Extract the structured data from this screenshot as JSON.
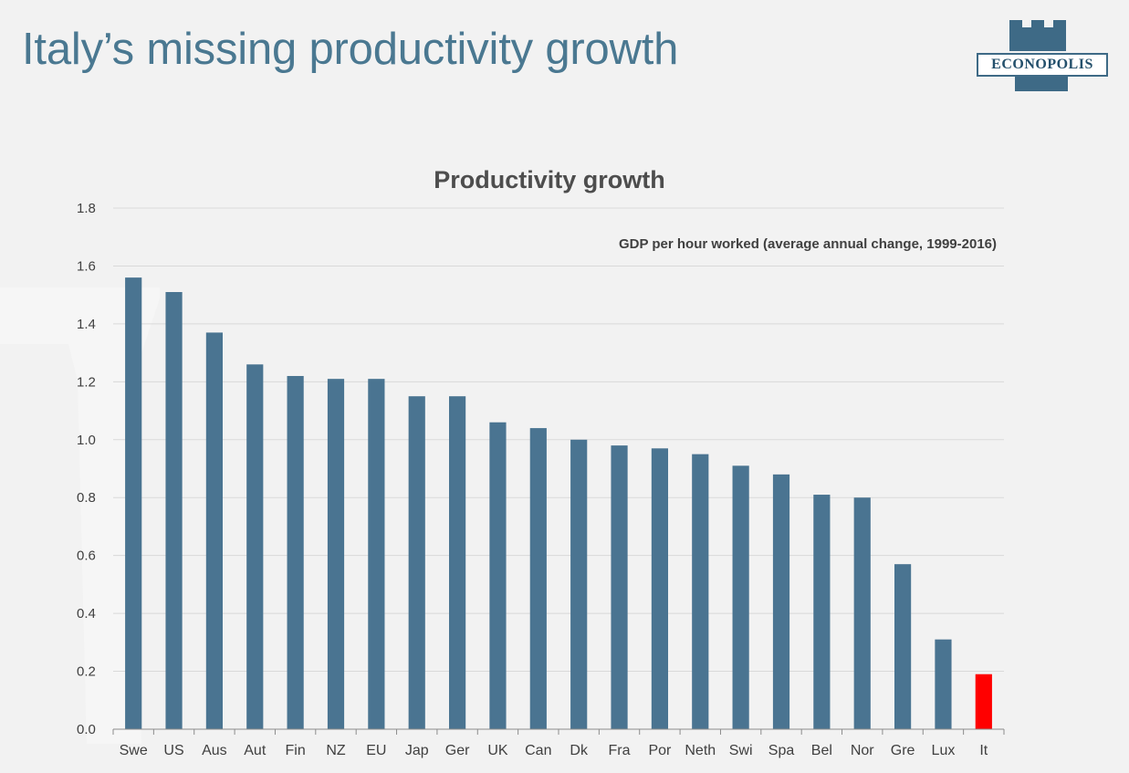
{
  "slide": {
    "title": "Italy’s missing productivity growth"
  },
  "logo": {
    "text": "ECONOPOLIS",
    "icon": "tower-icon"
  },
  "colors": {
    "title": "#4a7891",
    "bar": "#4a7491",
    "highlight": "#ff0000",
    "grid": "#d9d9d9",
    "background": "#f2f2f2"
  },
  "chart_data": {
    "type": "bar",
    "title": "Productivity growth",
    "subtitle": "GDP per hour worked (average annual change, 1999-2016)",
    "xlabel": "",
    "ylabel": "",
    "ylim": [
      0,
      1.8
    ],
    "yticks": [
      "0.0",
      "0.2",
      "0.4",
      "0.6",
      "0.8",
      "1.0",
      "1.2",
      "1.4",
      "1.6",
      "1.8"
    ],
    "grid": true,
    "categories": [
      "Swe",
      "US",
      "Aus",
      "Aut",
      "Fin",
      "NZ",
      "EU",
      "Jap",
      "Ger",
      "UK",
      "Can",
      "Dk",
      "Fra",
      "Por",
      "Neth",
      "Swi",
      "Spa",
      "Bel",
      "Nor",
      "Gre",
      "Lux",
      "It"
    ],
    "values": [
      1.56,
      1.51,
      1.37,
      1.26,
      1.22,
      1.21,
      1.21,
      1.15,
      1.15,
      1.06,
      1.04,
      1.0,
      0.98,
      0.97,
      0.95,
      0.91,
      0.88,
      0.81,
      0.8,
      0.57,
      0.31,
      0.19
    ],
    "highlight": [
      "It"
    ]
  }
}
